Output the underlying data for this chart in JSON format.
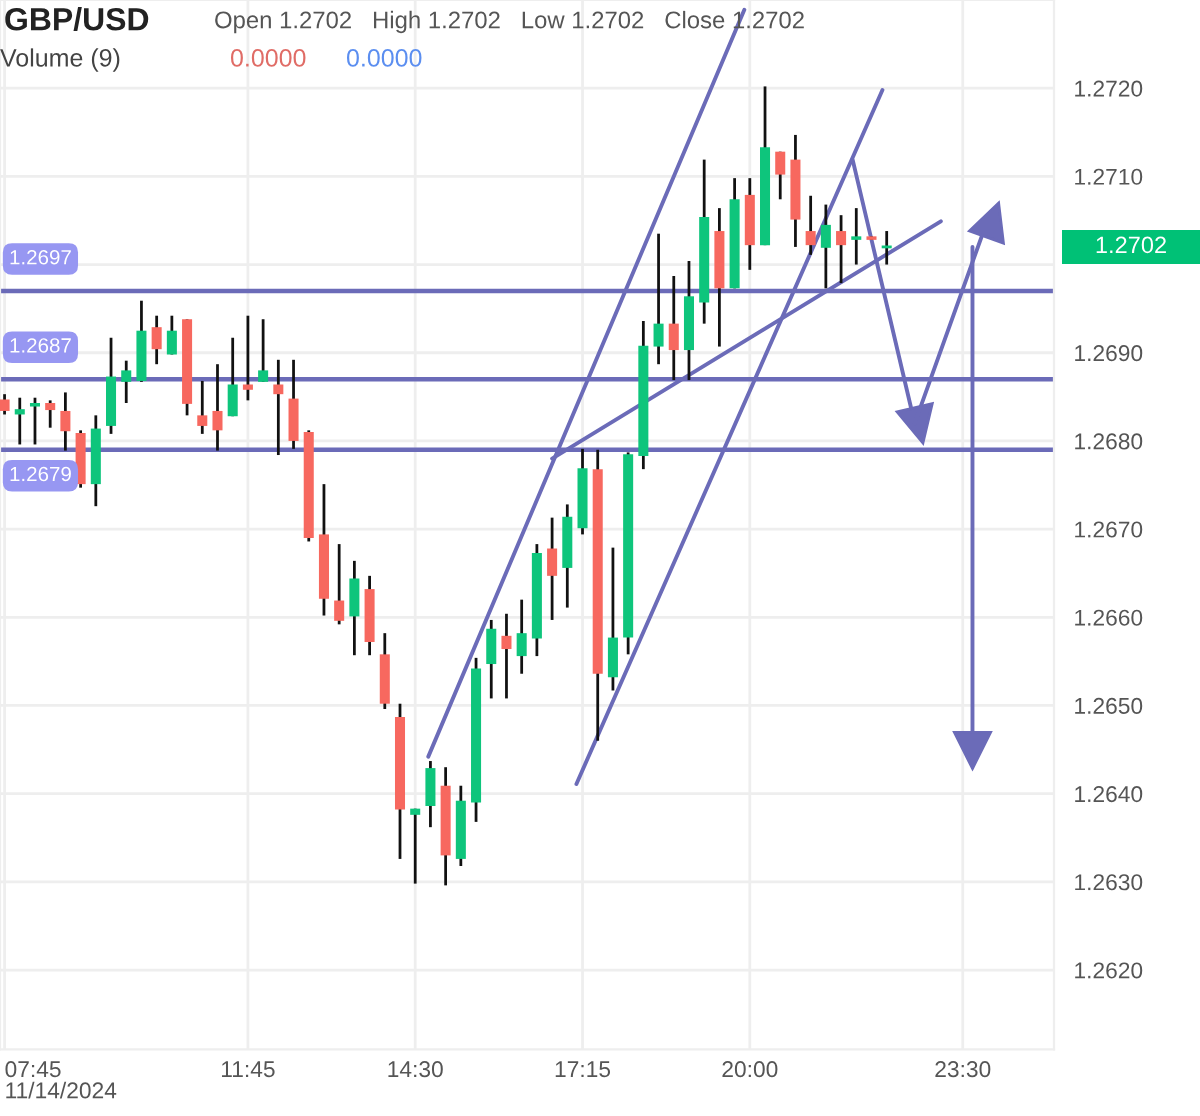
{
  "chart_data": {
    "type": "candlestick",
    "title": "GBP/USD",
    "annotations": [
      "Open 1.2702   High 1.2702   Low 1.2702   Close 1.2702",
      "Volume (9)",
      "0.0000",
      "0.0000",
      "1.2702"
    ],
    "x": [
      7.75,
      8,
      8.25,
      8.5,
      8.75,
      9,
      9.25,
      9.5,
      9.75,
      10,
      10.25,
      10.5,
      10.75,
      11,
      11.25,
      11.5,
      11.75,
      12,
      12.25,
      12.5,
      12.75,
      13,
      13.25,
      13.5,
      13.75,
      14,
      14.25,
      14.5,
      14.75,
      15,
      15.25,
      15.5,
      15.75,
      16,
      16.25,
      16.5,
      16.75,
      17,
      17.25,
      17.5,
      17.75,
      18,
      18.25,
      18.5,
      18.75,
      19,
      19.25,
      19.5,
      19.75,
      20,
      20.25,
      20.5,
      20.75,
      21,
      21.25,
      21.5,
      21.75,
      22,
      22.25
    ],
    "ohlc": [
      [
        1.26847,
        1.26853,
        1.2683,
        1.26834
      ],
      [
        1.2683,
        1.26849,
        1.26796,
        1.26836
      ],
      [
        1.26839,
        1.26849,
        1.26796,
        1.26843
      ],
      [
        1.26843,
        1.26846,
        1.26815,
        1.26835
      ],
      [
        1.26834,
        1.26855,
        1.26789,
        1.26811
      ],
      [
        1.26809,
        1.26812,
        1.26747,
        1.26751
      ],
      [
        1.26751,
        1.26829,
        1.26726,
        1.26814
      ],
      [
        1.26817,
        1.26917,
        1.26808,
        1.26873
      ],
      [
        1.26867,
        1.26891,
        1.26843,
        1.2688
      ],
      [
        1.26868,
        1.26959,
        1.26867,
        1.26925
      ],
      [
        1.26929,
        1.26942,
        1.26887,
        1.26904
      ],
      [
        1.26898,
        1.26942,
        1.26898,
        1.26925
      ],
      [
        1.26938,
        1.26938,
        1.26829,
        1.26842
      ],
      [
        1.26829,
        1.26868,
        1.26808,
        1.26817
      ],
      [
        1.26834,
        1.26887,
        1.26789,
        1.26812
      ],
      [
        1.26828,
        1.26917,
        1.26828,
        1.26864
      ],
      [
        1.26864,
        1.26942,
        1.26846,
        1.26858
      ],
      [
        1.26867,
        1.26938,
        1.26867,
        1.2688
      ],
      [
        1.26864,
        1.26892,
        1.26784,
        1.26853
      ],
      [
        1.26848,
        1.26892,
        1.26791,
        1.268
      ],
      [
        1.2681,
        1.26812,
        1.26686,
        1.2669
      ],
      [
        1.26694,
        1.26751,
        1.26602,
        1.26621
      ],
      [
        1.26619,
        1.26683,
        1.26592,
        1.26596
      ],
      [
        1.26601,
        1.26664,
        1.26557,
        1.26644
      ],
      [
        1.26632,
        1.26647,
        1.26557,
        1.26572
      ],
      [
        1.26558,
        1.26582,
        1.26496,
        1.26502
      ],
      [
        1.26487,
        1.26502,
        1.26326,
        1.26382
      ],
      [
        1.26376,
        1.26383,
        1.26298,
        1.26383
      ],
      [
        1.26386,
        1.26437,
        1.26362,
        1.26429
      ],
      [
        1.26409,
        1.2643,
        1.26296,
        1.2633
      ],
      [
        1.26326,
        1.26409,
        1.26318,
        1.26392
      ],
      [
        1.2639,
        1.26554,
        1.26368,
        1.26542
      ],
      [
        1.26547,
        1.26597,
        1.26508,
        1.26587
      ],
      [
        1.26579,
        1.26604,
        1.26508,
        1.26564
      ],
      [
        1.26556,
        1.2662,
        1.26536,
        1.26582
      ],
      [
        1.26576,
        1.26683,
        1.26556,
        1.26673
      ],
      [
        1.26678,
        1.26713,
        1.26597,
        1.26647
      ],
      [
        1.26656,
        1.26728,
        1.26611,
        1.26714
      ],
      [
        1.26701,
        1.26791,
        1.26694,
        1.26769
      ],
      [
        1.26768,
        1.2679,
        1.2646,
        1.26536
      ],
      [
        1.26532,
        1.26679,
        1.26517,
        1.26577
      ],
      [
        1.26577,
        1.26787,
        1.26558,
        1.26785
      ],
      [
        1.26783,
        1.26936,
        1.26768,
        1.26908
      ],
      [
        1.26907,
        1.27035,
        1.26887,
        1.26933
      ],
      [
        1.26933,
        1.26987,
        1.26869,
        1.26903
      ],
      [
        1.26903,
        1.27004,
        1.26869,
        1.26964
      ],
      [
        1.26957,
        1.27119,
        1.26933,
        1.27054
      ],
      [
        1.27038,
        1.27064,
        1.26907,
        1.26973
      ],
      [
        1.26973,
        1.27098,
        1.26973,
        1.27074
      ],
      [
        1.27079,
        1.27098,
        1.26994,
        1.27022
      ],
      [
        1.27022,
        1.27202,
        1.27022,
        1.27133
      ],
      [
        1.27128,
        1.27128,
        1.27074,
        1.27102
      ],
      [
        1.27119,
        1.27147,
        1.2702,
        1.27051
      ],
      [
        1.27038,
        1.27078,
        1.27011,
        1.27022
      ],
      [
        1.27019,
        1.27068,
        1.26973,
        1.27045
      ],
      [
        1.27038,
        1.27056,
        1.26979,
        1.27022
      ],
      [
        1.27028,
        1.27064,
        1.27,
        1.27032
      ],
      [
        1.27032,
        1.27032,
        1.27028,
        1.27028
      ],
      [
        1.2702,
        1.27038,
        1.27,
        1.2702
      ]
    ],
    "colors": [
      "#f7685f",
      "#0ec57c",
      "#0ec57c",
      "#f7685f",
      "#f7685f",
      "#f7685f",
      "#0ec57c",
      "#0ec57c",
      "#0ec57c",
      "#0ec57c",
      "#f7685f",
      "#0ec57c",
      "#f7685f",
      "#f7685f",
      "#f7685f",
      "#0ec57c",
      "#f7685f",
      "#0ec57c",
      "#f7685f",
      "#f7685f",
      "#f7685f",
      "#f7685f",
      "#f7685f",
      "#0ec57c",
      "#f7685f",
      "#f7685f",
      "#f7685f",
      "#0ec57c",
      "#0ec57c",
      "#f7685f",
      "#0ec57c",
      "#0ec57c",
      "#0ec57c",
      "#f7685f",
      "#0ec57c",
      "#0ec57c",
      "#f7685f",
      "#0ec57c",
      "#0ec57c",
      "#f7685f",
      "#0ec57c",
      "#0ec57c",
      "#0ec57c",
      "#0ec57c",
      "#f7685f",
      "#0ec57c",
      "#0ec57c",
      "#f7685f",
      "#0ec57c",
      "#f7685f",
      "#0ec57c",
      "#f7685f",
      "#f7685f",
      "#f7685f",
      "#0ec57c",
      "#f7685f",
      "#0ec57c",
      "#f7685f",
      "#0ec57c"
    ],
    "series": [
      {
        "type": "line",
        "color": "#6b6bb8",
        "x": [
          14.715,
          19.91
        ],
        "values": [
          1.26442,
          1.27289
        ]
      },
      {
        "type": "line",
        "color": "#6b6bb8",
        "x": [
          17.15,
          22.18
        ],
        "values": [
          1.26411,
          1.27198
        ]
      },
      {
        "type": "line",
        "color": "#6b6bb8",
        "x": [
          16.75,
          23.14
        ],
        "values": [
          1.2678,
          1.27049
        ]
      },
      {
        "type": "line",
        "color": "#6b6bb8",
        "marker": "triangle",
        "x": [
          21.69,
          22.71
        ],
        "values": [
          1.27119,
          1.2682
        ]
      },
      {
        "type": "line",
        "color": "#6b6bb8",
        "marker": "triangle",
        "x": [
          22.71,
          23.89
        ],
        "values": [
          1.2682,
          1.27047
        ]
      },
      {
        "type": "line",
        "color": "#6b6bb8",
        "marker": "triangle",
        "x": [
          23.66,
          23.66
        ],
        "values": [
          1.2702,
          1.26449
        ]
      }
    ],
    "ref_lines": [
      {
        "axis": "y",
        "value": 1.2697,
        "label": "1.2697",
        "color": "#6b6bb8"
      },
      {
        "axis": "y",
        "value": 1.2687,
        "label": "1.2687",
        "color": "#6b6bb8"
      },
      {
        "axis": "y",
        "value": 1.2679,
        "label": "1.2679",
        "color": "#6b6bb8"
      }
    ],
    "xlim": [
      7.675,
      25.0
    ],
    "xticks": [
      {
        "value": 7.75,
        "label": "07:45\n11/14/2024"
      },
      {
        "value": 11.75,
        "label": "11:45"
      },
      {
        "value": 14.5,
        "label": "14:30"
      },
      {
        "value": 17.25,
        "label": "17:15"
      },
      {
        "value": 20,
        "label": "20:00"
      },
      {
        "value": 23.5,
        "label": "23:30"
      }
    ],
    "ylim": [
      1.2611,
      1.273
    ],
    "yticks": [
      {
        "value": 1.262,
        "label": "1.2620"
      },
      {
        "value": 1.263,
        "label": "1.2630"
      },
      {
        "value": 1.264,
        "label": "1.2640"
      },
      {
        "value": 1.265,
        "label": "1.2650"
      },
      {
        "value": 1.266,
        "label": "1.2660"
      },
      {
        "value": 1.267,
        "label": "1.2670"
      },
      {
        "value": 1.268,
        "label": "1.2680"
      },
      {
        "value": 1.269,
        "label": "1.2690"
      },
      {
        "value": 1.27,
        "label": null
      },
      {
        "value": 1.271,
        "label": "1.2710"
      },
      {
        "value": 1.272,
        "label": "1.2720"
      }
    ],
    "grid": true
  }
}
